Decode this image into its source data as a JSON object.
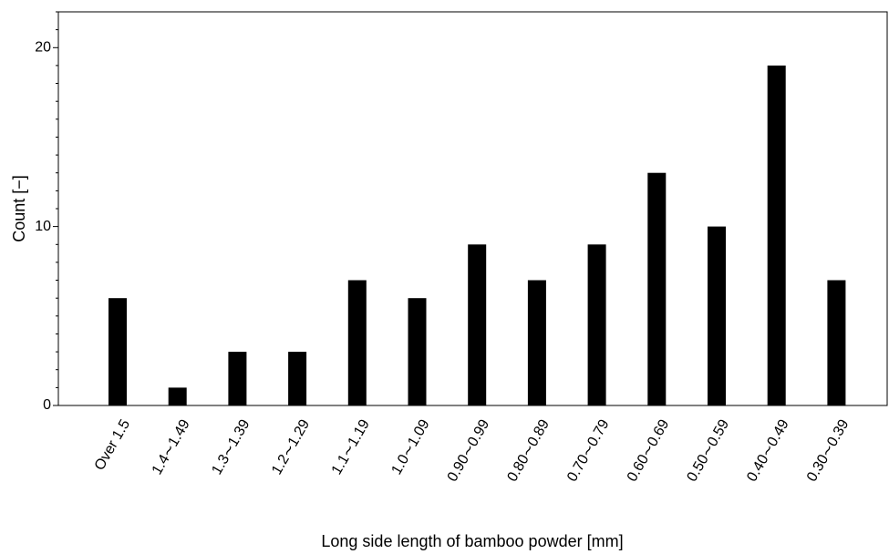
{
  "chart_data": {
    "type": "bar",
    "title": "",
    "xlabel": "Long side length of bamboo powder [mm]",
    "ylabel": "Count [−]",
    "categories": [
      "Over 1.5",
      "1.4∼1.49",
      "1.3∼1.39",
      "1.2∼1.29",
      "1.1∼1.19",
      "1.0∼1.09",
      "0.90∼0.99",
      "0.80∼0.89",
      "0.70∼0.79",
      "0.60∼0.69",
      "0.50∼0.59",
      "0.40∼0.49",
      "0.30∼0.39"
    ],
    "values": [
      6,
      1,
      3,
      3,
      7,
      6,
      9,
      7,
      9,
      13,
      10,
      19,
      7
    ],
    "ylim": [
      0,
      22
    ],
    "yticks": [
      0,
      10,
      20
    ],
    "grid": false,
    "bar_color": "#000000"
  }
}
